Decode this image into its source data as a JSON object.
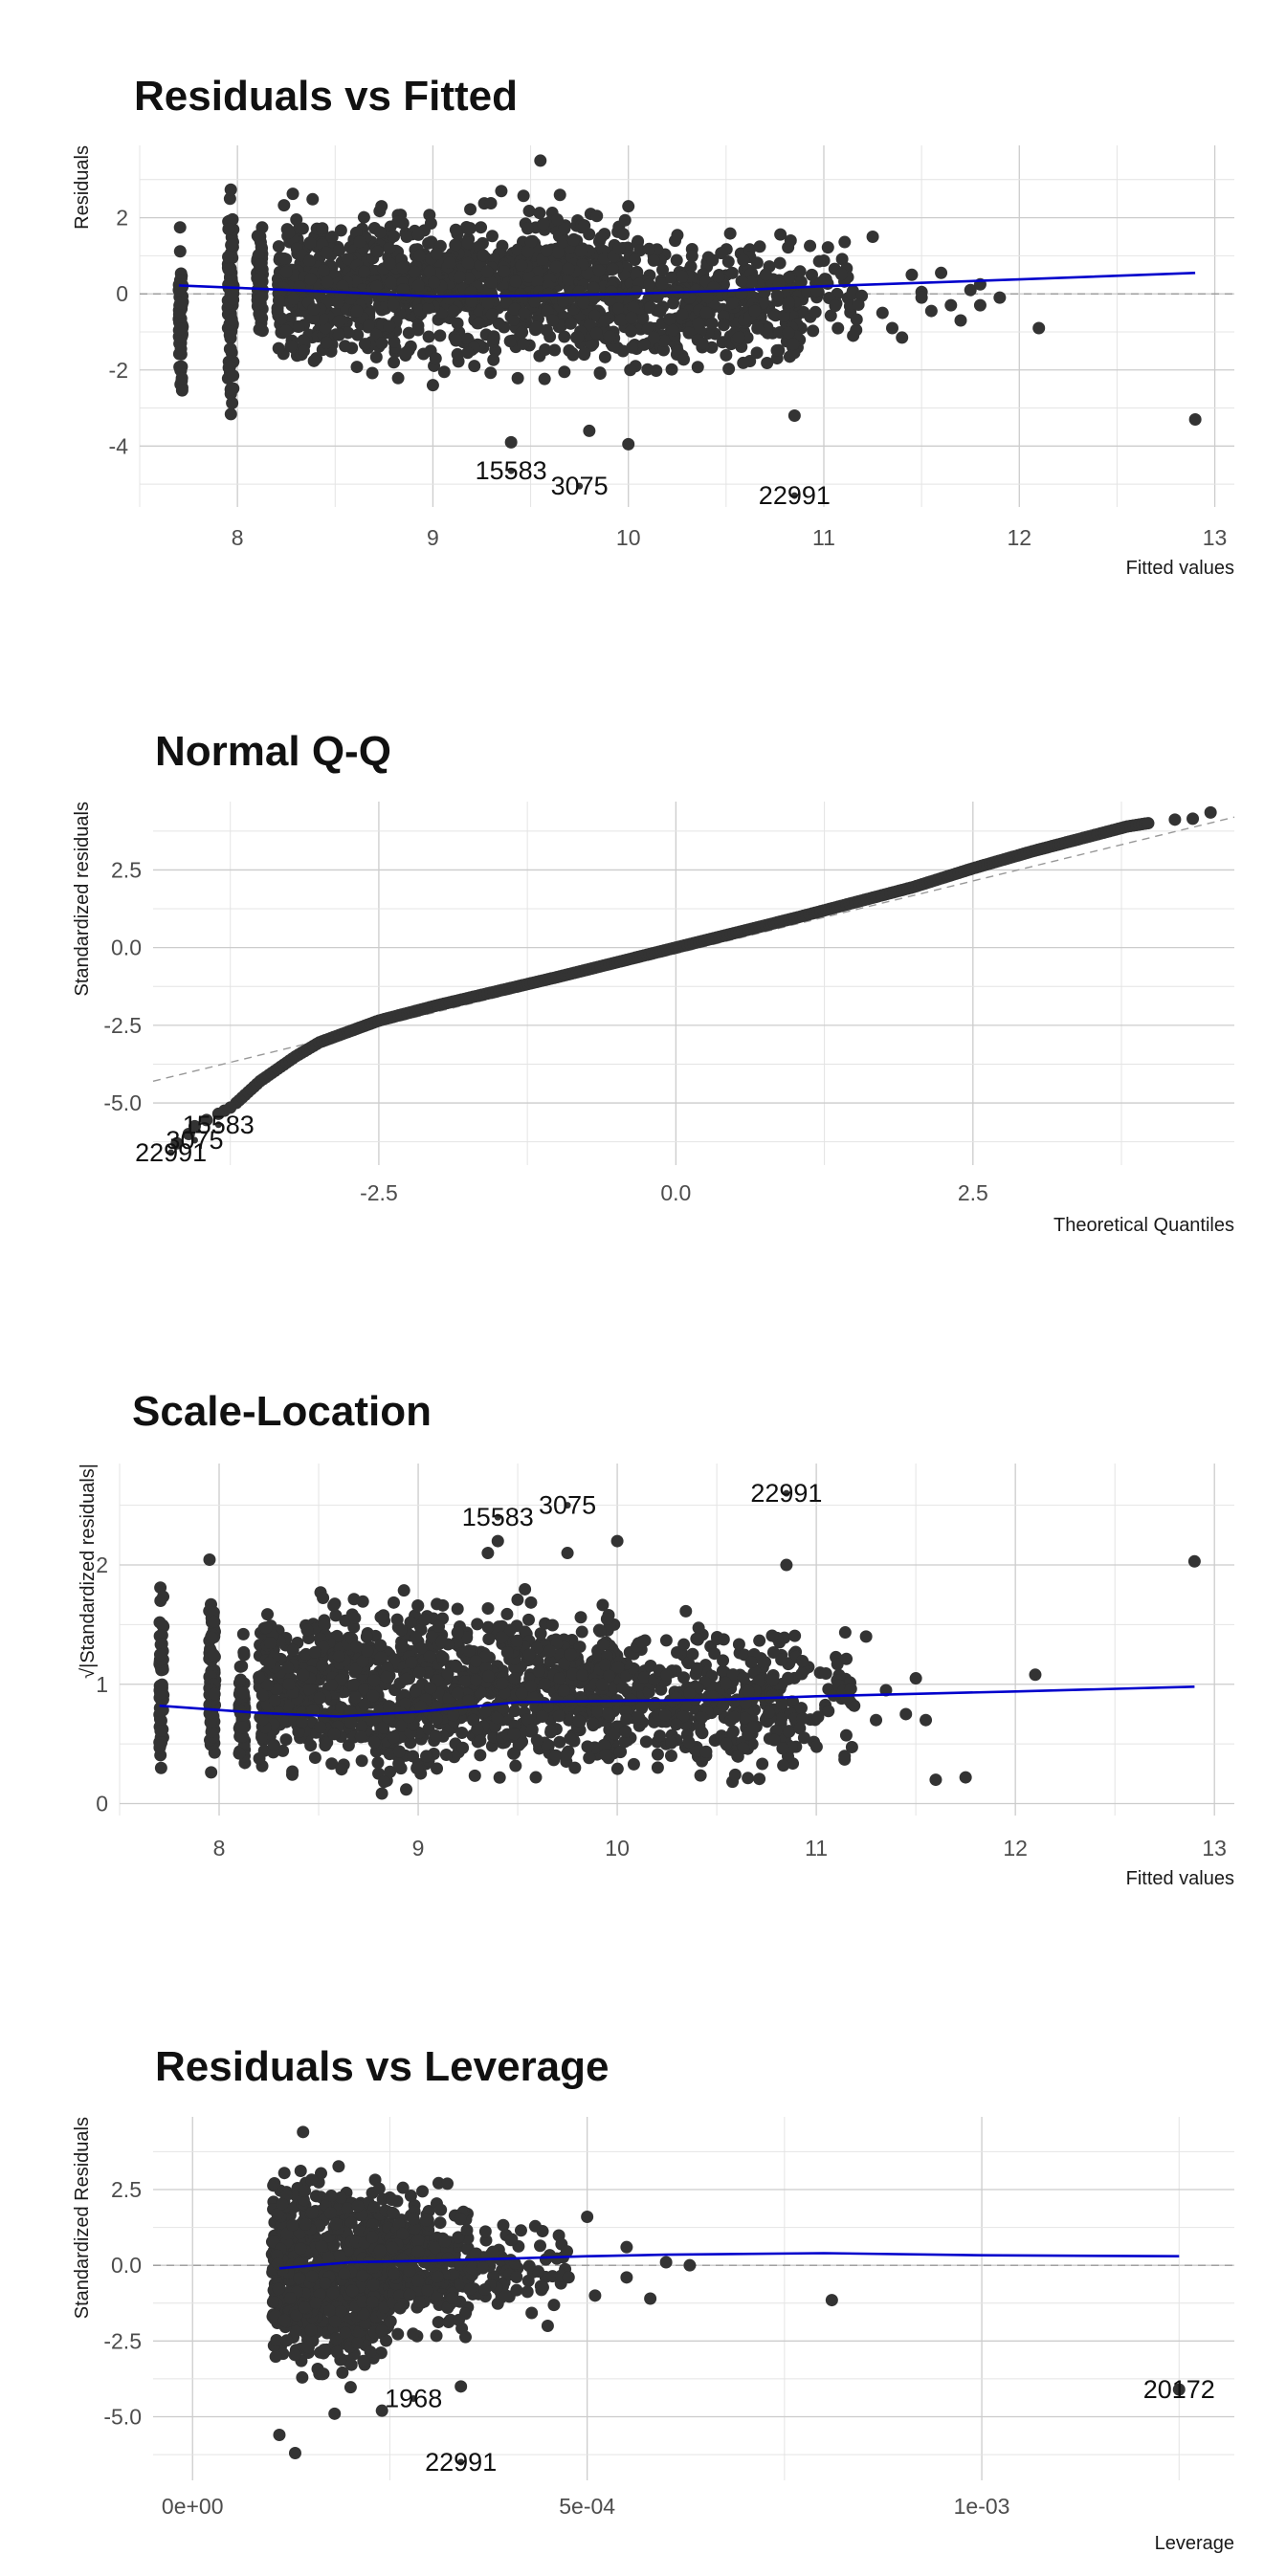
{
  "chart_data": [
    {
      "type": "scatter",
      "title": "Residuals vs Fitted",
      "xlabel": "Fitted values",
      "ylabel": "Residuals",
      "xlim": [
        7.5,
        13.1
      ],
      "ylim": [
        -5.6,
        3.9
      ],
      "xticks": [
        8,
        9,
        10,
        11,
        12,
        13
      ],
      "xtick_labels": [
        "8",
        "9",
        "10",
        "11",
        "12",
        "13"
      ],
      "yticks": [
        -4,
        -2,
        0,
        2
      ],
      "ytick_labels": [
        "-4",
        "-2",
        "0",
        "2"
      ],
      "grid": true,
      "reference_line": {
        "y": 0,
        "style": "dashed"
      },
      "smooth_line": [
        [
          7.7,
          0.22
        ],
        [
          8.5,
          0.05
        ],
        [
          9.0,
          -0.07
        ],
        [
          9.5,
          -0.05
        ],
        [
          10.0,
          0.0
        ],
        [
          10.5,
          0.08
        ],
        [
          11.0,
          0.2
        ],
        [
          12.0,
          0.38
        ],
        [
          12.9,
          0.55
        ]
      ],
      "point_groups": [
        {
          "x_min": 7.7,
          "x_max": 7.72,
          "y_min": -3.6,
          "y_max": 2.4,
          "count": 60
        },
        {
          "x_min": 7.95,
          "x_max": 7.98,
          "y_min": -3.8,
          "y_max": 3.2,
          "count": 80
        },
        {
          "x_min": 8.1,
          "x_max": 8.13,
          "y_min": -2.0,
          "y_max": 2.6,
          "count": 60
        },
        {
          "x_min": 8.2,
          "x_max": 10.0,
          "y_min": -2.5,
          "y_max": 2.9,
          "count": 1100
        },
        {
          "x_min": 10.0,
          "x_max": 10.9,
          "y_min": -2.6,
          "y_max": 2.0,
          "count": 350
        },
        {
          "x_min": 10.9,
          "x_max": 11.2,
          "y_min": -1.6,
          "y_max": 1.9,
          "count": 40
        }
      ],
      "points": [
        [
          8.8,
          -1.8
        ],
        [
          9.0,
          -2.4
        ],
        [
          9.35,
          2.7
        ],
        [
          9.4,
          -3.9
        ],
        [
          9.55,
          3.5
        ],
        [
          9.65,
          2.6
        ],
        [
          9.8,
          -3.6
        ],
        [
          10.0,
          2.3
        ],
        [
          10.0,
          -3.95
        ],
        [
          10.85,
          -3.2
        ],
        [
          11.25,
          1.5
        ],
        [
          11.3,
          -0.5
        ],
        [
          11.35,
          -0.9
        ],
        [
          11.4,
          -1.15
        ],
        [
          11.45,
          0.5
        ],
        [
          11.5,
          0.05
        ],
        [
          11.55,
          -0.45
        ],
        [
          11.6,
          0.55
        ],
        [
          11.65,
          -0.3
        ],
        [
          11.7,
          -0.7
        ],
        [
          11.75,
          0.1
        ],
        [
          11.8,
          0.25
        ],
        [
          11.9,
          -0.1
        ],
        [
          11.5,
          -0.1
        ],
        [
          11.15,
          -1.1
        ],
        [
          11.8,
          -0.3
        ],
        [
          12.1,
          -0.9
        ],
        [
          12.9,
          -3.3
        ]
      ],
      "labeled_points": [
        {
          "label": "15583",
          "x": 9.4,
          "y": -4.65
        },
        {
          "label": "3075",
          "x": 9.75,
          "y": -5.05
        },
        {
          "label": "22991",
          "x": 10.85,
          "y": -5.3
        }
      ]
    },
    {
      "type": "scatter",
      "title": "Normal Q-Q",
      "xlabel": "Theoretical Quantiles",
      "ylabel": "Standardized residuals",
      "xlim": [
        -4.4,
        4.7
      ],
      "ylim": [
        -7.0,
        4.7
      ],
      "xticks": [
        -2.5,
        0.0,
        2.5
      ],
      "xtick_labels": [
        "-2.5",
        "0.0",
        "2.5"
      ],
      "yticks": [
        -5.0,
        -2.5,
        0.0,
        2.5
      ],
      "ytick_labels": [
        "-5.0",
        "-2.5",
        "0.0",
        "2.5"
      ],
      "grid": true,
      "reference_line": {
        "x": [
          -4.4,
          4.7
        ],
        "y": [
          -4.3,
          4.2
        ],
        "style": "dashed"
      },
      "qq_curve": [
        [
          -3.7,
          -5.0
        ],
        [
          -3.5,
          -4.3
        ],
        [
          -3.2,
          -3.5
        ],
        [
          -3.0,
          -3.05
        ],
        [
          -2.5,
          -2.35
        ],
        [
          -2.0,
          -1.85
        ],
        [
          -1.0,
          -0.95
        ],
        [
          0.0,
          0.0
        ],
        [
          1.0,
          0.95
        ],
        [
          2.0,
          1.95
        ],
        [
          2.5,
          2.55
        ],
        [
          3.0,
          3.1
        ],
        [
          3.5,
          3.6
        ],
        [
          3.8,
          3.9
        ],
        [
          4.0,
          4.02
        ]
      ],
      "points": [
        [
          -3.75,
          -5.15
        ],
        [
          -3.8,
          -5.25
        ],
        [
          -3.85,
          -5.35
        ],
        [
          -3.95,
          -5.55
        ],
        [
          -4.05,
          -5.75
        ],
        [
          -4.1,
          -6.0
        ],
        [
          -4.2,
          -6.3
        ],
        [
          4.2,
          4.12
        ],
        [
          4.35,
          4.15
        ],
        [
          4.5,
          4.35
        ]
      ],
      "labeled_points": [
        {
          "label": "15583",
          "x": -3.85,
          "y": -5.7
        },
        {
          "label": "3075",
          "x": -4.05,
          "y": -6.2
        },
        {
          "label": "22991",
          "x": -4.25,
          "y": -6.6
        }
      ]
    },
    {
      "type": "scatter",
      "title": "Scale-Location",
      "xlabel": "Fitted values",
      "ylabel": "√|Standardized residuals|",
      "xlim": [
        7.5,
        13.1
      ],
      "ylim": [
        -0.1,
        2.85
      ],
      "xticks": [
        8,
        9,
        10,
        11,
        12,
        13
      ],
      "xtick_labels": [
        "8",
        "9",
        "10",
        "11",
        "12",
        "13"
      ],
      "yticks": [
        0,
        1,
        2
      ],
      "ytick_labels": [
        "0",
        "1",
        "2"
      ],
      "grid": true,
      "smooth_line": [
        [
          7.7,
          0.82
        ],
        [
          8.2,
          0.76
        ],
        [
          8.6,
          0.73
        ],
        [
          9.0,
          0.77
        ],
        [
          9.5,
          0.85
        ],
        [
          10.0,
          0.86
        ],
        [
          10.5,
          0.87
        ],
        [
          11.0,
          0.9
        ],
        [
          12.0,
          0.94
        ],
        [
          12.9,
          0.98
        ]
      ],
      "point_groups": [
        {
          "x_min": 7.7,
          "x_max": 7.72,
          "y_min": 0.1,
          "y_max": 2.1,
          "count": 60
        },
        {
          "x_min": 7.95,
          "x_max": 7.98,
          "y_min": 0.05,
          "y_max": 2.15,
          "count": 80
        },
        {
          "x_min": 8.1,
          "x_max": 8.13,
          "y_min": 0.05,
          "y_max": 1.6,
          "count": 60
        },
        {
          "x_min": 8.2,
          "x_max": 10.0,
          "y_min": 0.02,
          "y_max": 1.9,
          "count": 1100
        },
        {
          "x_min": 10.0,
          "x_max": 10.9,
          "y_min": 0.02,
          "y_max": 1.7,
          "count": 350
        },
        {
          "x_min": 10.9,
          "x_max": 11.2,
          "y_min": 0.2,
          "y_max": 1.55,
          "count": 40
        }
      ],
      "points": [
        [
          9.35,
          2.1
        ],
        [
          9.4,
          2.2
        ],
        [
          9.75,
          2.1
        ],
        [
          10.0,
          2.2
        ],
        [
          10.85,
          2.0
        ],
        [
          11.25,
          1.4
        ],
        [
          11.3,
          0.7
        ],
        [
          11.35,
          0.95
        ],
        [
          11.45,
          0.75
        ],
        [
          11.5,
          1.05
        ],
        [
          11.55,
          0.7
        ],
        [
          11.6,
          0.2
        ],
        [
          11.75,
          0.22
        ],
        [
          12.1,
          1.08
        ],
        [
          12.9,
          2.03
        ]
      ],
      "labeled_points": [
        {
          "label": "15583",
          "x": 9.4,
          "y": 2.4
        },
        {
          "label": "3075",
          "x": 9.75,
          "y": 2.5
        },
        {
          "label": "22991",
          "x": 10.85,
          "y": 2.6
        }
      ]
    },
    {
      "type": "scatter",
      "title": "Residuals vs Leverage",
      "xlabel": "Leverage",
      "ylabel": "Standardized Residuals",
      "xlim": [
        -5e-05,
        0.00132
      ],
      "ylim": [
        -7.1,
        4.9
      ],
      "xticks": [
        0,
        0.0005,
        0.001
      ],
      "xtick_labels": [
        "0e+00",
        "5e-04",
        "1e-03"
      ],
      "yticks": [
        -5.0,
        -2.5,
        0.0,
        2.5
      ],
      "ytick_labels": [
        "-5.0",
        "-2.5",
        "0.0",
        "2.5"
      ],
      "grid": true,
      "reference_line": {
        "y": 0,
        "style": "dashed"
      },
      "smooth_line": [
        [
          0.00011,
          -0.1
        ],
        [
          0.0002,
          0.1
        ],
        [
          0.0003,
          0.15
        ],
        [
          0.0004,
          0.22
        ],
        [
          0.0005,
          0.3
        ],
        [
          0.0006,
          0.35
        ],
        [
          0.0008,
          0.4
        ],
        [
          0.001,
          0.33
        ],
        [
          0.00125,
          0.3
        ]
      ],
      "point_groups": [
        {
          "x_min": 0.0001,
          "x_max": 0.00025,
          "y_min": -4.5,
          "y_max": 4.0,
          "count": 700
        },
        {
          "x_min": 0.00025,
          "x_max": 0.00035,
          "y_min": -3.2,
          "y_max": 3.4,
          "count": 250
        },
        {
          "x_min": 0.00035,
          "x_max": 0.00048,
          "y_min": -1.8,
          "y_max": 1.8,
          "count": 80
        }
      ],
      "points": [
        [
          0.00011,
          -5.6
        ],
        [
          0.00013,
          -6.2
        ],
        [
          0.00014,
          4.4
        ],
        [
          0.00018,
          -4.9
        ],
        [
          0.00024,
          -4.8
        ],
        [
          0.00034,
          -4.0
        ],
        [
          0.00045,
          -2.0
        ],
        [
          0.0005,
          1.6
        ],
        [
          0.00051,
          -1.0
        ],
        [
          0.00055,
          0.6
        ],
        [
          0.00055,
          -0.4
        ],
        [
          0.00058,
          -1.1
        ],
        [
          0.0006,
          0.1
        ],
        [
          0.00063,
          0.0
        ],
        [
          0.00081,
          -1.15
        ],
        [
          0.00125,
          -4.1
        ]
      ],
      "labeled_points": [
        {
          "label": "1968",
          "x": 0.00028,
          "y": -4.4
        },
        {
          "label": "22991",
          "x": 0.00034,
          "y": -6.5
        },
        {
          "label": "20172",
          "x": 0.00125,
          "y": -4.1
        }
      ]
    }
  ]
}
